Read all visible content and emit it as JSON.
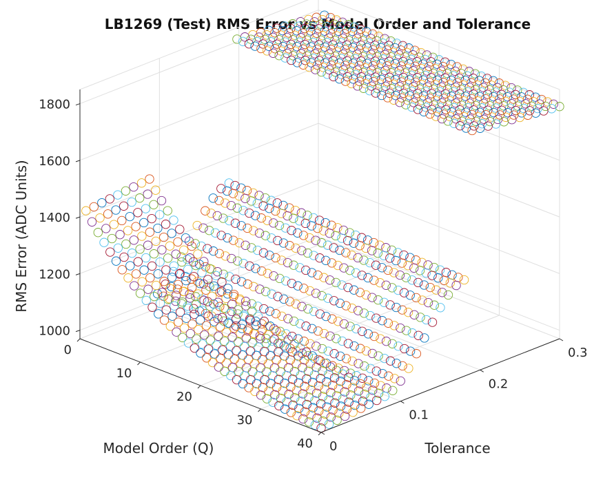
{
  "chart_data": {
    "type": "scatter",
    "projection": "3d",
    "title": "LB1269 (Test) RMS Error vs Model Order and Tolerance",
    "xlabel": "Model Order (Q)",
    "ylabel": "Tolerance",
    "zlabel": "RMS Error (ADC Units)",
    "xlim": [
      0,
      40
    ],
    "ylim": [
      0,
      0.3
    ],
    "zlim": [
      970,
      1850
    ],
    "x_ticks": [
      "0",
      "10",
      "20",
      "30",
      "40"
    ],
    "y_ticks": [
      "0",
      "0.1",
      "0.2",
      "0.3"
    ],
    "z_ticks": [
      "1000",
      "1200",
      "1400",
      "1600",
      "1800"
    ],
    "grid": true,
    "marker": "open-circle",
    "series_colors": [
      "#0072BD",
      "#D95319",
      "#EDB120",
      "#7E2F8E",
      "#77AC30",
      "#4DBEEE",
      "#A2142F"
    ],
    "model_order_values": [
      1,
      2,
      3,
      4,
      5,
      6,
      7,
      8,
      9,
      10,
      11,
      12,
      13,
      14,
      15,
      16,
      17,
      18,
      19,
      20,
      21,
      22,
      23,
      24,
      25,
      26,
      27,
      28,
      29,
      30,
      31,
      32,
      33,
      34,
      35,
      36,
      37,
      38,
      39,
      40
    ],
    "tolerance_values": [
      0.0,
      0.01,
      0.02,
      0.03,
      0.04,
      0.05,
      0.06,
      0.07,
      0.08,
      0.09,
      0.1,
      0.11,
      0.12,
      0.13,
      0.14,
      0.15,
      0.16,
      0.17,
      0.18,
      0.19,
      0.2,
      0.21,
      0.22,
      0.23,
      0.24,
      0.25,
      0.26,
      0.27,
      0.28,
      0.29,
      0.3
    ],
    "surface_regions": [
      {
        "tolerance_range": [
          0.0,
          0.08
        ],
        "rms_error_at_order_1": 1430,
        "rms_error_at_order_40": 985,
        "shape": "decreasing with model order, steeper at low order"
      },
      {
        "tolerance_range": [
          0.08,
          0.18
        ],
        "rms_error_range": [
          1010,
          1310
        ],
        "shape": "increasing with tolerance"
      },
      {
        "tolerance_range": [
          0.18,
          0.3
        ],
        "rms_error_range": [
          1790,
          1830
        ],
        "shape": "flat plateau, independent of model order"
      }
    ]
  }
}
